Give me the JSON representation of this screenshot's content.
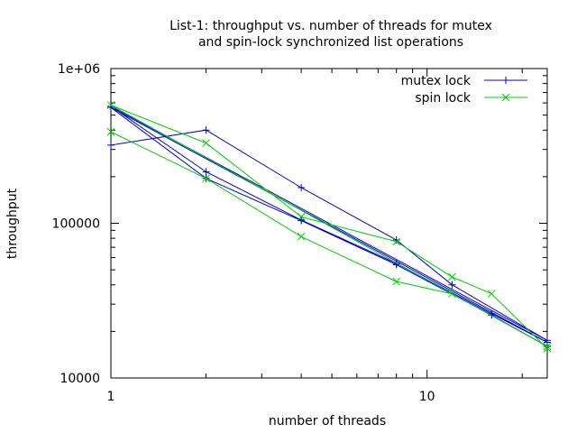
{
  "chart_data": {
    "type": "line",
    "title_lines": [
      "List-1: throughput vs. number of threads for mutex",
      "and spin-lock synchronized list operations"
    ],
    "xlabel": "number of threads",
    "ylabel": "throughput",
    "x_scale": "log",
    "y_scale": "log",
    "xlim": [
      1,
      24
    ],
    "ylim": [
      10000,
      1000000
    ],
    "x_ticks": [
      {
        "value": 1,
        "label": "1"
      },
      {
        "value": 10,
        "label": "10"
      }
    ],
    "y_ticks": [
      {
        "value": 10000,
        "label": "10000"
      },
      {
        "value": 100000,
        "label": "100000"
      },
      {
        "value": 1000000,
        "label": "1e+06"
      }
    ],
    "grid": false,
    "legend_position": "top-right",
    "series": [
      {
        "name": "mutex lock",
        "color": "#0000cc",
        "marker": "plus",
        "points": [
          [
            1,
            320000
          ],
          [
            2,
            400000
          ],
          [
            4,
            170000
          ],
          [
            8,
            78000
          ],
          [
            12,
            40000
          ],
          [
            24,
            17500
          ],
          [
            1,
            570000
          ],
          [
            2,
            215000
          ],
          [
            4,
            105000
          ],
          [
            8,
            55000
          ],
          [
            16,
            26000
          ],
          [
            24,
            17000
          ],
          [
            1,
            560000
          ],
          [
            2,
            195000
          ],
          [
            4,
            104000
          ],
          [
            8,
            54000
          ],
          [
            16,
            25500
          ],
          [
            24,
            16000
          ]
        ]
      },
      {
        "name": "spin lock",
        "color": "#00cc00",
        "marker": "cross",
        "points": [
          [
            1,
            390000
          ],
          [
            2,
            195000
          ],
          [
            4,
            82000
          ],
          [
            8,
            42000
          ],
          [
            12,
            35000
          ],
          [
            24,
            16000
          ],
          [
            1,
            580000
          ],
          [
            2,
            330000
          ],
          [
            4,
            110000
          ],
          [
            8,
            76000
          ],
          [
            12,
            45000
          ],
          [
            16,
            35000
          ],
          [
            24,
            15500
          ]
        ]
      }
    ]
  }
}
